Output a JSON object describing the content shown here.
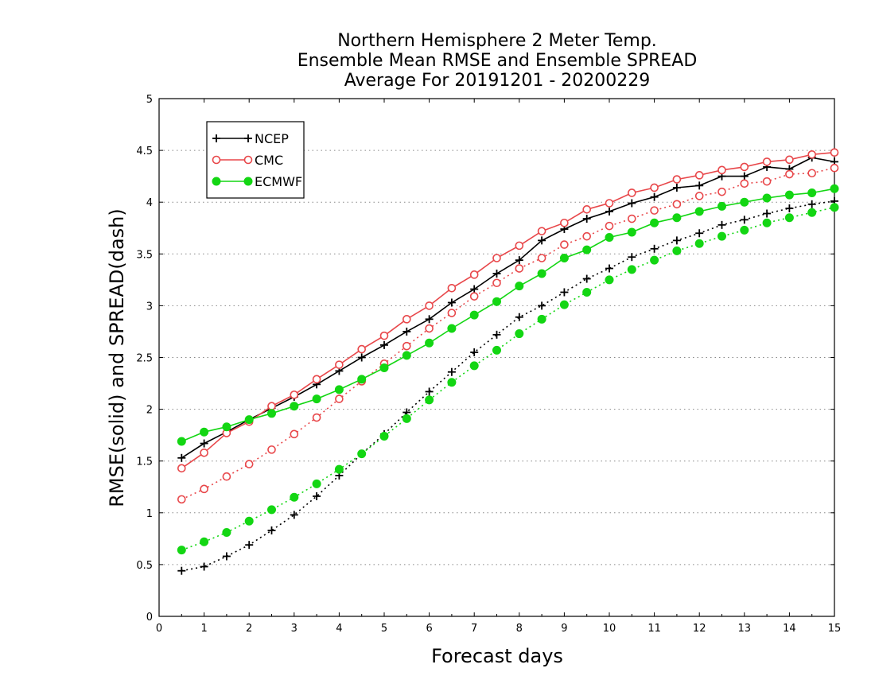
{
  "chart_data": {
    "type": "line",
    "title_lines": [
      "Northern Hemisphere 2 Meter Temp.",
      "Ensemble Mean RMSE and Ensemble SPREAD",
      "Average For 20191201 - 20200229"
    ],
    "xlabel": "Forecast days",
    "ylabel": "RMSE(solid) and SPREAD(dash)",
    "xlim": [
      0,
      15
    ],
    "ylim": [
      0,
      5
    ],
    "x_ticks": [
      "0",
      "1",
      "2",
      "3",
      "4",
      "5",
      "6",
      "7",
      "8",
      "9",
      "10",
      "11",
      "12",
      "13",
      "14",
      "15"
    ],
    "y_ticks": [
      "0",
      "0.5",
      "1",
      "1.5",
      "2",
      "2.5",
      "3",
      "3.5",
      "4",
      "4.5",
      "5"
    ],
    "grid": "horizontal dotted",
    "legend_position": "top-left",
    "x": [
      0.5,
      1,
      1.5,
      2,
      2.5,
      3,
      3.5,
      4,
      4.5,
      5,
      5.5,
      6,
      6.5,
      7,
      7.5,
      8,
      8.5,
      9,
      9.5,
      10,
      10.5,
      11,
      11.5,
      12,
      12.5,
      13,
      13.5,
      14,
      14.5,
      15
    ],
    "series": [
      {
        "name": "NCEP",
        "color": "#000000",
        "marker": "plus",
        "rmse": [
          1.53,
          1.67,
          1.78,
          1.9,
          2.01,
          2.12,
          2.24,
          2.37,
          2.5,
          2.62,
          2.75,
          2.87,
          3.03,
          3.16,
          3.31,
          3.44,
          3.63,
          3.74,
          3.84,
          3.91,
          3.99,
          4.05,
          4.14,
          4.16,
          4.25,
          4.25,
          4.34,
          4.32,
          4.43,
          4.39
        ],
        "spread": [
          0.44,
          0.48,
          0.58,
          0.69,
          0.83,
          0.98,
          1.16,
          1.36,
          1.57,
          1.76,
          1.97,
          2.17,
          2.36,
          2.55,
          2.72,
          2.89,
          3.0,
          3.13,
          3.26,
          3.36,
          3.47,
          3.55,
          3.63,
          3.7,
          3.78,
          3.83,
          3.89,
          3.94,
          3.98,
          4.01
        ]
      },
      {
        "name": "CMC",
        "color": "#e8474a",
        "marker": "open-circle",
        "rmse": [
          1.43,
          1.58,
          1.77,
          1.88,
          2.03,
          2.14,
          2.29,
          2.43,
          2.58,
          2.71,
          2.87,
          3.0,
          3.17,
          3.3,
          3.46,
          3.58,
          3.72,
          3.8,
          3.93,
          3.99,
          4.09,
          4.14,
          4.22,
          4.26,
          4.31,
          4.34,
          4.39,
          4.41,
          4.46,
          4.48
        ],
        "spread": [
          1.13,
          1.23,
          1.35,
          1.47,
          1.61,
          1.76,
          1.92,
          2.1,
          2.27,
          2.44,
          2.61,
          2.78,
          2.93,
          3.09,
          3.22,
          3.36,
          3.46,
          3.59,
          3.67,
          3.77,
          3.84,
          3.92,
          3.98,
          4.06,
          4.1,
          4.18,
          4.2,
          4.27,
          4.28,
          4.33
        ]
      },
      {
        "name": "ECMWF",
        "color": "#13d613",
        "marker": "filled-circle",
        "rmse": [
          1.69,
          1.78,
          1.83,
          1.9,
          1.96,
          2.03,
          2.1,
          2.19,
          2.29,
          2.4,
          2.52,
          2.64,
          2.78,
          2.91,
          3.04,
          3.19,
          3.31,
          3.46,
          3.54,
          3.66,
          3.71,
          3.8,
          3.85,
          3.91,
          3.96,
          4.0,
          4.04,
          4.07,
          4.09,
          4.13
        ],
        "spread": [
          0.64,
          0.72,
          0.81,
          0.92,
          1.03,
          1.15,
          1.28,
          1.42,
          1.57,
          1.74,
          1.91,
          2.09,
          2.26,
          2.42,
          2.57,
          2.73,
          2.87,
          3.01,
          3.13,
          3.25,
          3.35,
          3.44,
          3.53,
          3.6,
          3.67,
          3.73,
          3.8,
          3.85,
          3.9,
          3.95
        ]
      }
    ]
  }
}
